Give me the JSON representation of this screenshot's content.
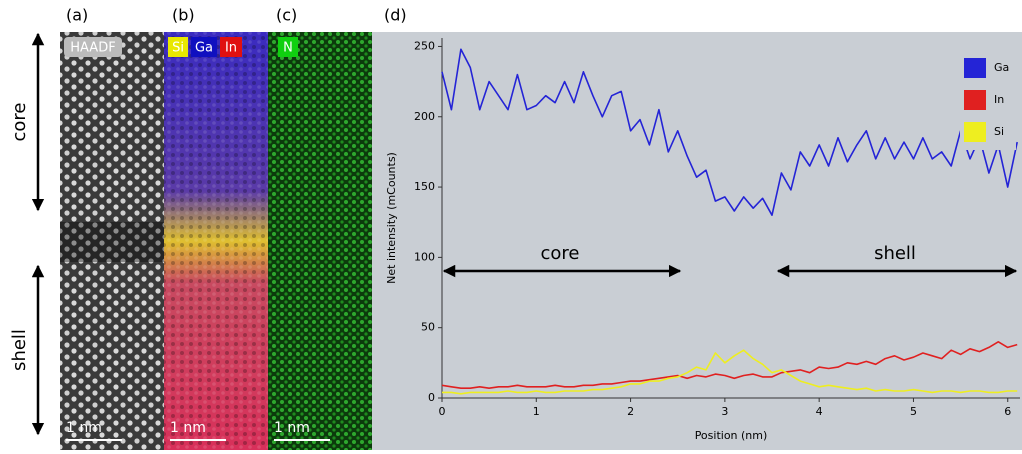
{
  "panels": {
    "labels": [
      "(a)",
      "(b)",
      "(c)",
      "(d)"
    ],
    "haadf": "HAADF",
    "elements_b": [
      "Si",
      "Ga",
      "In"
    ],
    "element_c": "N",
    "scale_bars": [
      "1 nm",
      "1 nm",
      "1 nm"
    ],
    "side_labels": [
      "core",
      "shell"
    ]
  },
  "chart_data": {
    "type": "line",
    "xlabel": "Position (nm)",
    "ylabel": "Net intensity (mCounts)",
    "annotations": [
      "core",
      "shell"
    ],
    "x": [
      0,
      0.1,
      0.2,
      0.3,
      0.4,
      0.5,
      0.6,
      0.7,
      0.8,
      0.9,
      1,
      1.1,
      1.2,
      1.3,
      1.4,
      1.5,
      1.6,
      1.7,
      1.8,
      1.9,
      2,
      2.1,
      2.2,
      2.3,
      2.4,
      2.5,
      2.6,
      2.7,
      2.8,
      2.9,
      3,
      3.1,
      3.2,
      3.3,
      3.4,
      3.5,
      3.6,
      3.7,
      3.8,
      3.9,
      4,
      4.1,
      4.2,
      4.3,
      4.4,
      4.5,
      4.6,
      4.7,
      4.8,
      4.9,
      5,
      5.1,
      5.2,
      5.3,
      5.4,
      5.5,
      5.6,
      5.7,
      5.8,
      5.9,
      6,
      6.1
    ],
    "series": [
      {
        "name": "Ga",
        "color": "#2424d6",
        "values": [
          232,
          205,
          248,
          235,
          205,
          225,
          215,
          205,
          230,
          205,
          208,
          215,
          210,
          225,
          210,
          232,
          215,
          200,
          215,
          218,
          190,
          198,
          180,
          205,
          175,
          190,
          172,
          157,
          162,
          140,
          143,
          133,
          143,
          135,
          142,
          130,
          160,
          148,
          175,
          165,
          180,
          165,
          185,
          168,
          180,
          190,
          170,
          185,
          170,
          182,
          170,
          185,
          170,
          175,
          165,
          190,
          170,
          185,
          160,
          180,
          150,
          182
        ]
      },
      {
        "name": "In",
        "color": "#e02020",
        "values": [
          9,
          8,
          7,
          7,
          8,
          7,
          8,
          8,
          9,
          8,
          8,
          8,
          9,
          8,
          8,
          9,
          9,
          10,
          10,
          11,
          12,
          12,
          13,
          14,
          15,
          16,
          14,
          16,
          15,
          17,
          16,
          14,
          16,
          17,
          15,
          15,
          18,
          19,
          20,
          18,
          22,
          21,
          22,
          25,
          24,
          26,
          24,
          28,
          30,
          27,
          29,
          32,
          30,
          28,
          34,
          31,
          35,
          33,
          36,
          40,
          36,
          38
        ]
      },
      {
        "name": "Si",
        "color": "#eeee20",
        "values": [
          4,
          4,
          3,
          4,
          4,
          4,
          4,
          5,
          4,
          4,
          5,
          4,
          4,
          5,
          5,
          5,
          6,
          6,
          7,
          8,
          10,
          10,
          12,
          12,
          14,
          15,
          18,
          22,
          20,
          32,
          25,
          30,
          34,
          28,
          24,
          18,
          20,
          16,
          12,
          10,
          8,
          9,
          8,
          7,
          6,
          7,
          5,
          6,
          5,
          5,
          6,
          5,
          4,
          5,
          5,
          4,
          5,
          5,
          4,
          4,
          5,
          5
        ]
      }
    ],
    "xlim": [
      0,
      6.13
    ],
    "ylim": [
      0,
      256
    ],
    "xticks": [
      0,
      1,
      2,
      3,
      4,
      5,
      6
    ],
    "yticks": [
      0,
      50,
      100,
      150,
      200,
      250
    ]
  }
}
